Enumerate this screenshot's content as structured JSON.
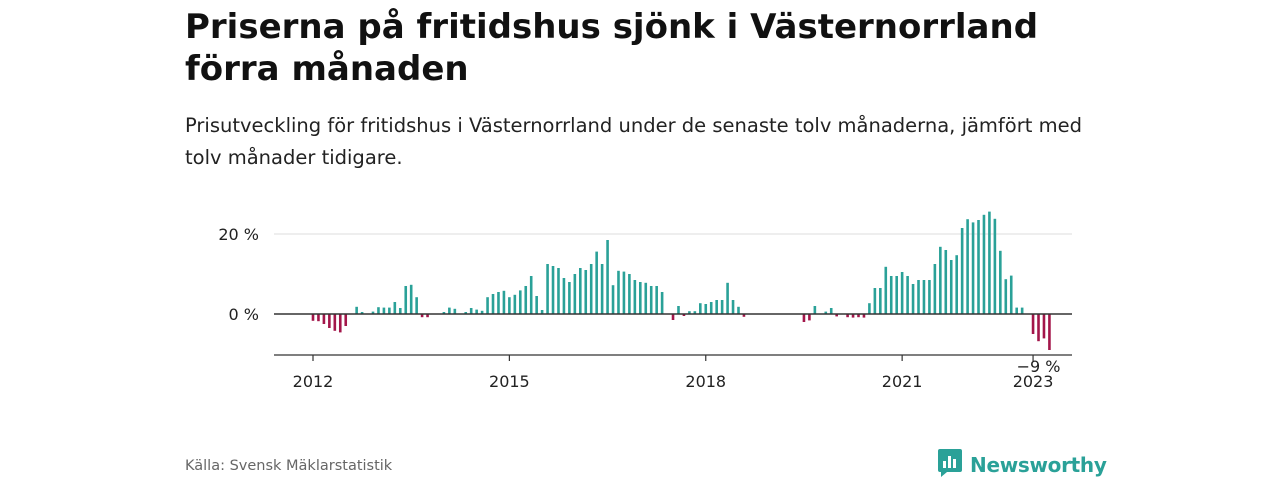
{
  "title": "Priserna på fritidshus sjönk i Västernorrland förra månaden",
  "subtitle": "Prisutveckling för fritidshus i Västernorrland under de senaste tolv månaderna, jämfört med tolv månader tidigare.",
  "source": "Källa: Svensk Mäklarstatistik",
  "brand": {
    "name": "Newsworthy",
    "color": "#2aa198",
    "icon": "newsworthy-logo-icon"
  },
  "colors": {
    "positive": "#2aa198",
    "negative": "#a3164a",
    "zero_line": "#333333",
    "grid": "#dddddd",
    "axis": "#333333"
  },
  "chart_data": {
    "type": "bar",
    "x_start": "2011-07",
    "x_unit": "month",
    "ylim": [
      -10,
      25
    ],
    "yticks": [
      0,
      20
    ],
    "ytick_labels": [
      "0 %",
      "20 %"
    ],
    "xticks": [
      2012,
      2015,
      2018,
      2021,
      2023
    ],
    "xtick_labels": [
      "2012",
      "2015",
      "2018",
      "2021",
      "2023"
    ],
    "grid": true,
    "annotations": [
      {
        "x": "2023-02",
        "label": "−9 %"
      }
    ],
    "values": [
      0,
      0,
      0,
      0,
      0,
      0,
      -1.7,
      -1.8,
      -2.5,
      -3.5,
      -4.2,
      -4.6,
      -3.0,
      0,
      1.8,
      0.5,
      0,
      0.6,
      1.7,
      1.6,
      1.6,
      3.0,
      1.5,
      7.0,
      7.3,
      4.2,
      -0.8,
      -0.8,
      0,
      0,
      0.5,
      1.6,
      1.3,
      0,
      0.5,
      1.5,
      1.1,
      0.8,
      4.2,
      5.0,
      5.5,
      5.8,
      4.2,
      4.8,
      5.9,
      7.0,
      9.5,
      4.5,
      1.0,
      12.5,
      12.0,
      11.5,
      9.0,
      8.0,
      10.0,
      11.5,
      11.0,
      12.5,
      15.6,
      12.5,
      18.5,
      7.2,
      10.8,
      10.6,
      10.0,
      8.5,
      8.0,
      7.8,
      7.0,
      7.0,
      5.5,
      0,
      -1.5,
      2.0,
      -0.5,
      0.7,
      0.7,
      2.7,
      2.5,
      3.0,
      3.5,
      3.5,
      7.8,
      3.5,
      1.8,
      -0.7,
      0,
      0,
      0,
      0,
      0,
      0,
      0,
      0,
      0,
      0,
      -2.0,
      -1.6,
      2.0,
      0,
      0.6,
      1.5,
      -0.6,
      0,
      -0.8,
      -0.9,
      -0.8,
      -0.9,
      2.7,
      6.5,
      6.5,
      11.8,
      9.5,
      9.5,
      10.5,
      9.5,
      7.5,
      8.5,
      8.5,
      8.5,
      12.5,
      16.8,
      16.0,
      13.5,
      14.7,
      21.5,
      23.7,
      22.9,
      23.5,
      24.8,
      25.6,
      23.8,
      15.8,
      8.7,
      9.6,
      1.6,
      1.6,
      0,
      -5.0,
      -6.8,
      -6.1,
      -9.0
    ]
  }
}
